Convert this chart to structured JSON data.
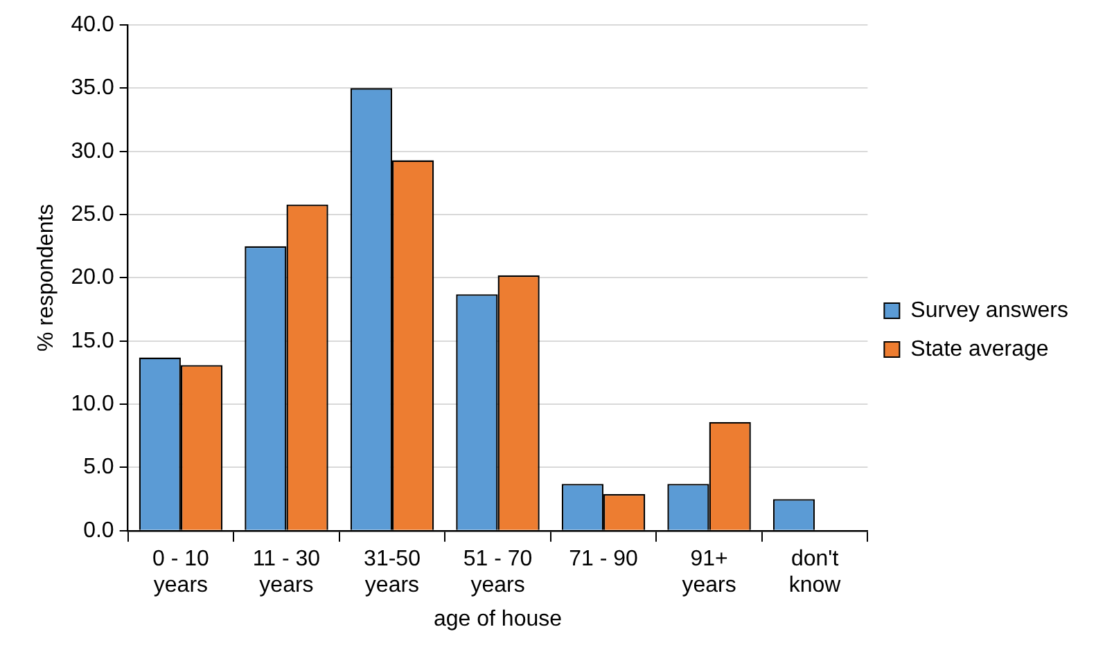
{
  "chart_data": {
    "type": "bar",
    "xlabel": "age of house",
    "ylabel": "% respondents",
    "categories": [
      "0 - 10\nyears",
      "11 - 30\nyears",
      "31-50\nyears",
      "51 - 70\nyears",
      "71 - 90",
      "91+\nyears",
      "don't\nknow"
    ],
    "series": [
      {
        "name": "Survey answers",
        "color": "#5b9bd5",
        "values": [
          13.7,
          22.5,
          35.0,
          18.7,
          3.7,
          3.7,
          2.5
        ]
      },
      {
        "name": "State average",
        "color": "#ed7d31",
        "values": [
          13.1,
          25.8,
          29.3,
          20.2,
          2.9,
          8.6,
          null
        ]
      }
    ],
    "ylim": [
      0,
      40
    ],
    "yticks": [
      {
        "value": 0,
        "label": "0.0"
      },
      {
        "value": 5,
        "label": "5.0"
      },
      {
        "value": 10,
        "label": "10.0"
      },
      {
        "value": 15,
        "label": "15.0"
      },
      {
        "value": 20,
        "label": "20.0"
      },
      {
        "value": 25,
        "label": "25.0"
      },
      {
        "value": 30,
        "label": "30.0"
      },
      {
        "value": 35,
        "label": "35.0"
      },
      {
        "value": 40,
        "label": "40.0"
      }
    ],
    "grid": "y",
    "legend": "right"
  }
}
